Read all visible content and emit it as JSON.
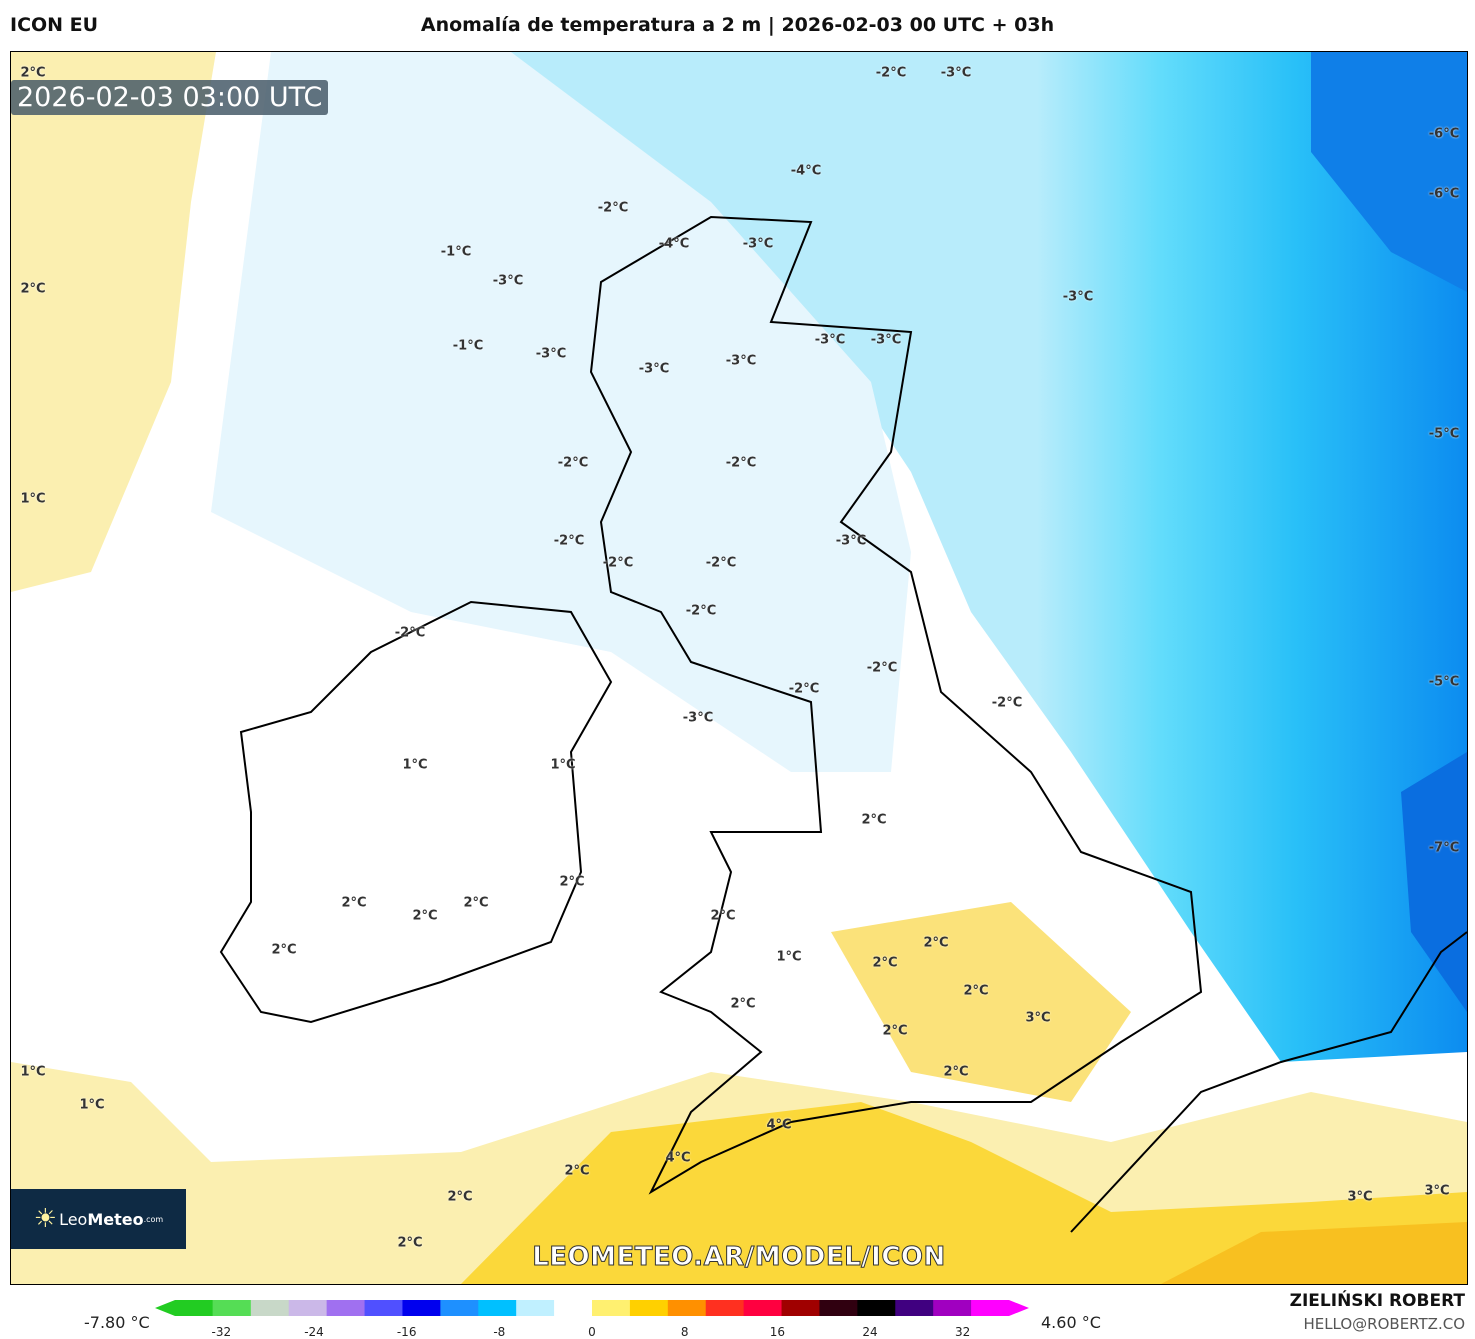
{
  "header": {
    "model": "ICON EU",
    "title": "Anomalía de temperatura a 2 m | 2026-02-03 00 UTC + 03h"
  },
  "map": {
    "timestamp": "2026-02-03 03:00 UTC",
    "watermark": "LEOMETEO.AR/MODEL/ICON",
    "logo": {
      "sun": "sun-icon",
      "leo": "Leo",
      "meteo": "Meteo",
      "com": ".com"
    },
    "contour_labels": [
      "2°C",
      "-2°C",
      "-3°C",
      "-6°C",
      "-6°C",
      "-4°C",
      "-2°C",
      "-1°C",
      "-4°C",
      "-3°C",
      "2°C",
      "-3°C",
      "-3°C",
      "-1°C",
      "-3°C",
      "-3°C",
      "-3°C",
      "-3°C",
      "-3°C",
      "-5°C",
      "-2°C",
      "-2°C",
      "1°C",
      "-2°C",
      "-3°C",
      "-2°C",
      "-2°C",
      "-2°C",
      "-2°C",
      "-2°C",
      "-2°C",
      "-5°C",
      "-2°C",
      "-3°C",
      "1°C",
      "1°C",
      "2°C",
      "-7°C",
      "2°C",
      "2°C",
      "2°C",
      "2°C",
      "2°C",
      "2°C",
      "2°C",
      "1°C",
      "2°C",
      "2°C",
      "2°C",
      "3°C",
      "2°C",
      "2°C",
      "1°C",
      "1°C",
      "4°C",
      "4°C",
      "2°C",
      "2°C",
      "3°C",
      "3°C",
      "2°C"
    ]
  },
  "colorbar": {
    "min_value": "-7.80 °C",
    "max_value": "4.60 °C",
    "ticks": [
      "-32",
      "-24",
      "-16",
      "-8",
      "0",
      "8",
      "16",
      "24",
      "32"
    ],
    "colors": [
      "#22cc22",
      "#55dd55",
      "#c8d8c8",
      "#cbb8e8",
      "#a070f0",
      "#5050ff",
      "#0000ee",
      "#1e90ff",
      "#00c0ff",
      "#c0f0ff",
      "#ffffff",
      "#fff070",
      "#ffd000",
      "#ff9000",
      "#ff3020",
      "#ff0040",
      "#a00000",
      "#300010",
      "#000000",
      "#400080",
      "#a000c0",
      "#ff00ff"
    ]
  },
  "credits": {
    "author": "ZIELIŃSKI ROBERT",
    "email": "HELLO@ROBERTZ.CO"
  }
}
